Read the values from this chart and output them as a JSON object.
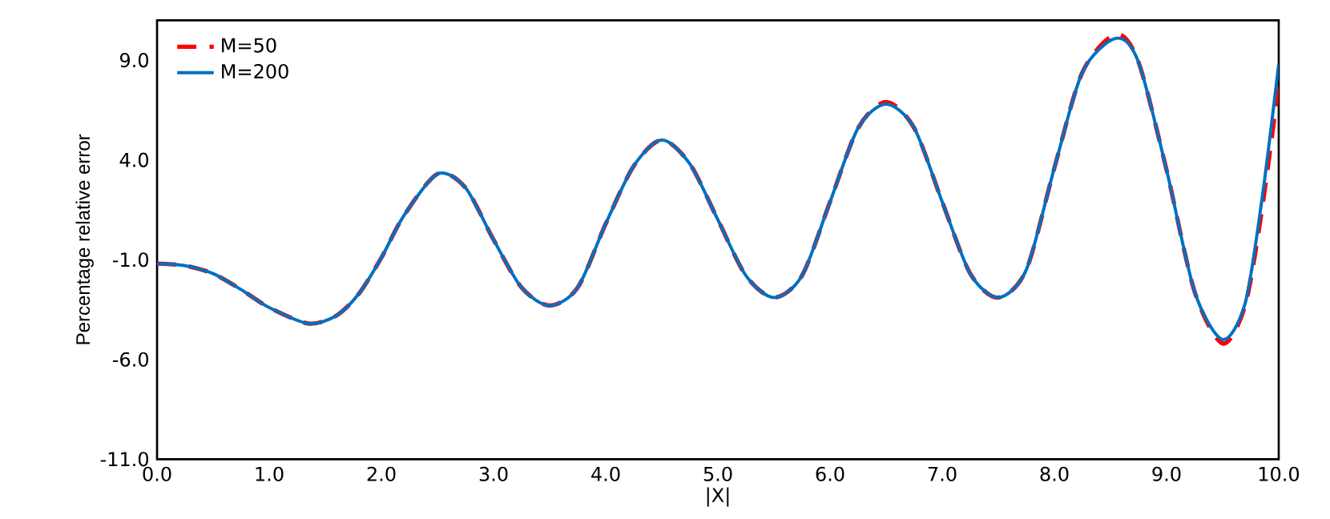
{
  "chart_data": {
    "type": "line",
    "xlabel": "|X|",
    "ylabel": "Percentage relative error",
    "x": [
      0,
      0.25,
      0.5,
      0.75,
      1.0,
      1.35,
      1.6,
      1.8,
      2.0,
      2.2,
      2.5,
      2.75,
      3.0,
      3.25,
      3.5,
      3.75,
      4.0,
      4.25,
      4.5,
      4.75,
      5.0,
      5.25,
      5.5,
      5.75,
      6.0,
      6.25,
      6.5,
      6.75,
      7.0,
      7.25,
      7.5,
      7.75,
      8.0,
      8.25,
      8.55,
      8.75,
      9.0,
      9.25,
      9.5,
      9.7,
      9.85,
      10.0
    ],
    "series": [
      {
        "name": "M=50",
        "color": "#ff0000",
        "line_style": "dashed",
        "values": [
          -1.2,
          -1.3,
          -1.7,
          -2.5,
          -3.4,
          -4.2,
          -3.8,
          -2.7,
          -0.9,
          1.2,
          3.3,
          2.6,
          0.0,
          -2.4,
          -3.3,
          -2.4,
          0.8,
          3.7,
          5.0,
          3.8,
          1.0,
          -1.8,
          -2.9,
          -1.8,
          1.9,
          5.6,
          6.9,
          5.6,
          1.9,
          -1.7,
          -2.9,
          -1.5,
          3.6,
          8.4,
          10.3,
          8.9,
          3.5,
          -2.6,
          -5.2,
          -3.3,
          1.5,
          7.8
        ]
      },
      {
        "name": "M=200",
        "color": "#0070c0",
        "line_style": "solid",
        "values": [
          -1.2,
          -1.3,
          -1.7,
          -2.5,
          -3.4,
          -4.2,
          -3.8,
          -2.7,
          -0.9,
          1.2,
          3.3,
          2.6,
          0.0,
          -2.4,
          -3.3,
          -2.4,
          0.8,
          3.7,
          5.0,
          3.8,
          1.0,
          -1.8,
          -2.9,
          -1.8,
          1.9,
          5.6,
          6.8,
          5.6,
          1.9,
          -1.7,
          -2.9,
          -1.5,
          3.6,
          8.4,
          10.1,
          8.9,
          3.5,
          -2.6,
          -5.0,
          -3.2,
          2.0,
          8.8
        ]
      }
    ],
    "xlim": [
      0,
      10
    ],
    "ylim": [
      -11,
      11
    ],
    "xticks": [
      {
        "value": 0,
        "label": "0.0"
      },
      {
        "value": 1,
        "label": "1.0"
      },
      {
        "value": 2,
        "label": "2.0"
      },
      {
        "value": 3,
        "label": "3.0"
      },
      {
        "value": 4,
        "label": "4.0"
      },
      {
        "value": 5,
        "label": "5.0"
      },
      {
        "value": 6,
        "label": "6.0"
      },
      {
        "value": 7,
        "label": "7.0"
      },
      {
        "value": 8,
        "label": "8.0"
      },
      {
        "value": 9,
        "label": "9.0"
      },
      {
        "value": 10,
        "label": "10.0"
      }
    ],
    "yticks": [
      {
        "value": -11,
        "label": "-11.0"
      },
      {
        "value": -6,
        "label": "-6.0"
      },
      {
        "value": -1,
        "label": "-1.0"
      },
      {
        "value": 4,
        "label": "4.0"
      },
      {
        "value": 9,
        "label": "9.0"
      }
    ],
    "grid": false,
    "legend": "top left",
    "marker": "none"
  }
}
